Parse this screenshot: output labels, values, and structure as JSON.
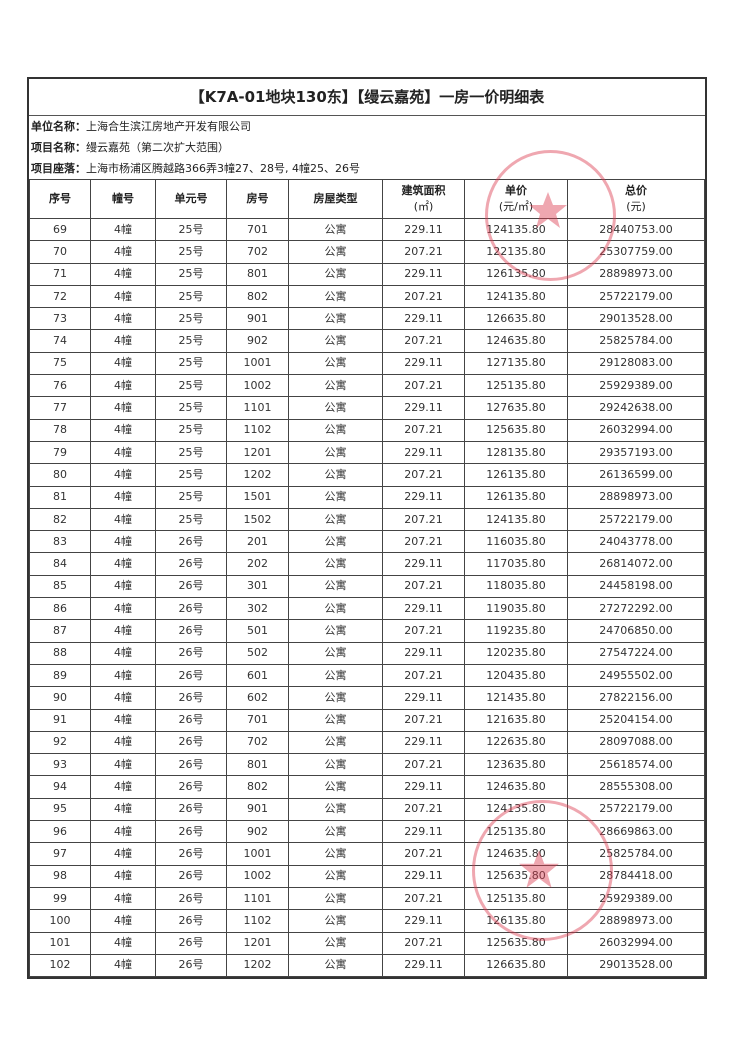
{
  "title": "【K7A-01地块130东】【缦云嘉苑】一房一价明细表",
  "info": [
    {
      "label": "单位名称：",
      "value": "上海合生滨江房地产开发有限公司"
    },
    {
      "label": "项目名称：",
      "value": "缦云嘉苑（第二次扩大范围）"
    },
    {
      "label": "项目座落：",
      "value": "上海市杨浦区腾越路366弄3幢27、28号, 4幢25、26号"
    }
  ],
  "headers": [
    {
      "line1": "序号",
      "line2": ""
    },
    {
      "line1": "幢号",
      "line2": ""
    },
    {
      "line1": "单元号",
      "line2": ""
    },
    {
      "line1": "房号",
      "line2": ""
    },
    {
      "line1": "房屋类型",
      "line2": ""
    },
    {
      "line1": "建筑面积",
      "line2": "(㎡)"
    },
    {
      "line1": "单价",
      "line2": "(元/㎡)"
    },
    {
      "line1": "总价",
      "line2": "(元)"
    }
  ],
  "rows": [
    [
      "69",
      "4幢",
      "25号",
      "701",
      "公寓",
      "229.11",
      "124135.80",
      "28440753.00"
    ],
    [
      "70",
      "4幢",
      "25号",
      "702",
      "公寓",
      "207.21",
      "122135.80",
      "25307759.00"
    ],
    [
      "71",
      "4幢",
      "25号",
      "801",
      "公寓",
      "229.11",
      "126135.80",
      "28898973.00"
    ],
    [
      "72",
      "4幢",
      "25号",
      "802",
      "公寓",
      "207.21",
      "124135.80",
      "25722179.00"
    ],
    [
      "73",
      "4幢",
      "25号",
      "901",
      "公寓",
      "229.11",
      "126635.80",
      "29013528.00"
    ],
    [
      "74",
      "4幢",
      "25号",
      "902",
      "公寓",
      "207.21",
      "124635.80",
      "25825784.00"
    ],
    [
      "75",
      "4幢",
      "25号",
      "1001",
      "公寓",
      "229.11",
      "127135.80",
      "29128083.00"
    ],
    [
      "76",
      "4幢",
      "25号",
      "1002",
      "公寓",
      "207.21",
      "125135.80",
      "25929389.00"
    ],
    [
      "77",
      "4幢",
      "25号",
      "1101",
      "公寓",
      "229.11",
      "127635.80",
      "29242638.00"
    ],
    [
      "78",
      "4幢",
      "25号",
      "1102",
      "公寓",
      "207.21",
      "125635.80",
      "26032994.00"
    ],
    [
      "79",
      "4幢",
      "25号",
      "1201",
      "公寓",
      "229.11",
      "128135.80",
      "29357193.00"
    ],
    [
      "80",
      "4幢",
      "25号",
      "1202",
      "公寓",
      "207.21",
      "126135.80",
      "26136599.00"
    ],
    [
      "81",
      "4幢",
      "25号",
      "1501",
      "公寓",
      "229.11",
      "126135.80",
      "28898973.00"
    ],
    [
      "82",
      "4幢",
      "25号",
      "1502",
      "公寓",
      "207.21",
      "124135.80",
      "25722179.00"
    ],
    [
      "83",
      "4幢",
      "26号",
      "201",
      "公寓",
      "207.21",
      "116035.80",
      "24043778.00"
    ],
    [
      "84",
      "4幢",
      "26号",
      "202",
      "公寓",
      "229.11",
      "117035.80",
      "26814072.00"
    ],
    [
      "85",
      "4幢",
      "26号",
      "301",
      "公寓",
      "207.21",
      "118035.80",
      "24458198.00"
    ],
    [
      "86",
      "4幢",
      "26号",
      "302",
      "公寓",
      "229.11",
      "119035.80",
      "27272292.00"
    ],
    [
      "87",
      "4幢",
      "26号",
      "501",
      "公寓",
      "207.21",
      "119235.80",
      "24706850.00"
    ],
    [
      "88",
      "4幢",
      "26号",
      "502",
      "公寓",
      "229.11",
      "120235.80",
      "27547224.00"
    ],
    [
      "89",
      "4幢",
      "26号",
      "601",
      "公寓",
      "207.21",
      "120435.80",
      "24955502.00"
    ],
    [
      "90",
      "4幢",
      "26号",
      "602",
      "公寓",
      "229.11",
      "121435.80",
      "27822156.00"
    ],
    [
      "91",
      "4幢",
      "26号",
      "701",
      "公寓",
      "207.21",
      "121635.80",
      "25204154.00"
    ],
    [
      "92",
      "4幢",
      "26号",
      "702",
      "公寓",
      "229.11",
      "122635.80",
      "28097088.00"
    ],
    [
      "93",
      "4幢",
      "26号",
      "801",
      "公寓",
      "207.21",
      "123635.80",
      "25618574.00"
    ],
    [
      "94",
      "4幢",
      "26号",
      "802",
      "公寓",
      "229.11",
      "124635.80",
      "28555308.00"
    ],
    [
      "95",
      "4幢",
      "26号",
      "901",
      "公寓",
      "207.21",
      "124135.80",
      "25722179.00"
    ],
    [
      "96",
      "4幢",
      "26号",
      "902",
      "公寓",
      "229.11",
      "125135.80",
      "28669863.00"
    ],
    [
      "97",
      "4幢",
      "26号",
      "1001",
      "公寓",
      "207.21",
      "124635.80",
      "25825784.00"
    ],
    [
      "98",
      "4幢",
      "26号",
      "1002",
      "公寓",
      "229.11",
      "125635.80",
      "28784418.00"
    ],
    [
      "99",
      "4幢",
      "26号",
      "1101",
      "公寓",
      "207.21",
      "125135.80",
      "25929389.00"
    ],
    [
      "100",
      "4幢",
      "26号",
      "1102",
      "公寓",
      "229.11",
      "126135.80",
      "28898973.00"
    ],
    [
      "101",
      "4幢",
      "26号",
      "1201",
      "公寓",
      "207.21",
      "125635.80",
      "26032994.00"
    ],
    [
      "102",
      "4幢",
      "26号",
      "1202",
      "公寓",
      "229.11",
      "126635.80",
      "29013528.00"
    ]
  ],
  "stamp_color": "#dc3c50"
}
